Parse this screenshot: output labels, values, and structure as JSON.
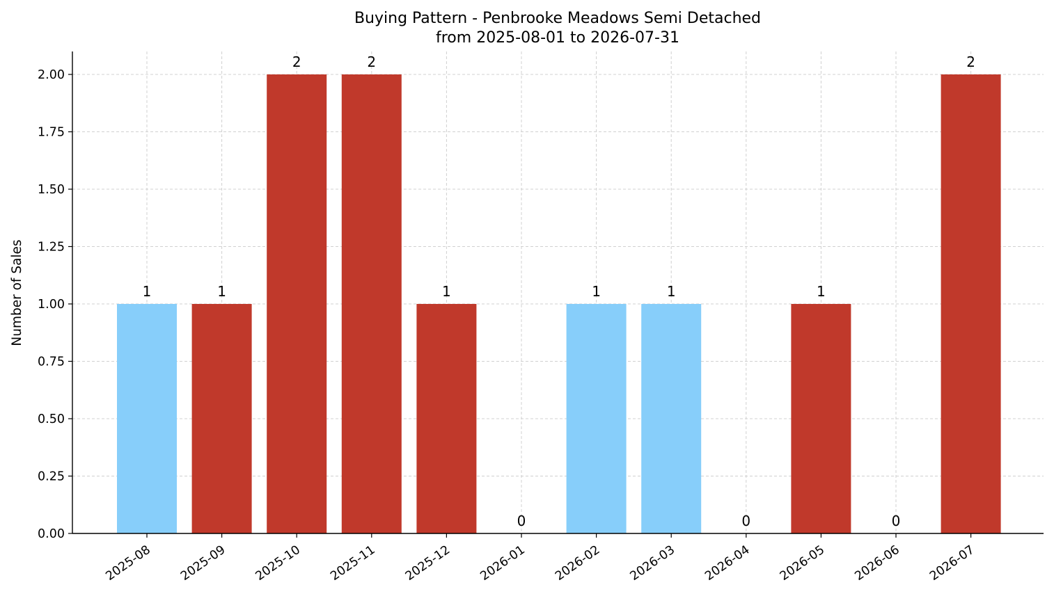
{
  "chart_data": {
    "type": "bar",
    "title": "Buying Pattern - Penbrooke Meadows Semi Detached",
    "subtitle": "from 2025-08-01 to 2026-07-31",
    "xlabel": "",
    "ylabel": "Number of Sales",
    "categories": [
      "2025-08",
      "2025-09",
      "2025-10",
      "2025-11",
      "2025-12",
      "2026-01",
      "2026-02",
      "2026-03",
      "2026-04",
      "2026-05",
      "2026-06",
      "2026-07"
    ],
    "values": [
      1,
      1,
      2,
      2,
      1,
      0,
      1,
      1,
      0,
      1,
      0,
      2
    ],
    "bar_colors": [
      "#87CEFA",
      "#C0392B",
      "#C0392B",
      "#C0392B",
      "#C0392B",
      "#87CEFA",
      "#87CEFA",
      "#87CEFA",
      "#87CEFA",
      "#C0392B",
      "#C0392B",
      "#C0392B"
    ],
    "data_labels": [
      "1",
      "1",
      "2",
      "2",
      "1",
      "0",
      "1",
      "1",
      "0",
      "1",
      "0",
      "2"
    ],
    "yticks": [
      "0.00",
      "0.25",
      "0.50",
      "0.75",
      "1.00",
      "1.25",
      "1.50",
      "1.75",
      "2.00"
    ],
    "ylim": [
      0,
      2.1
    ],
    "grid": true,
    "legend": "none"
  }
}
